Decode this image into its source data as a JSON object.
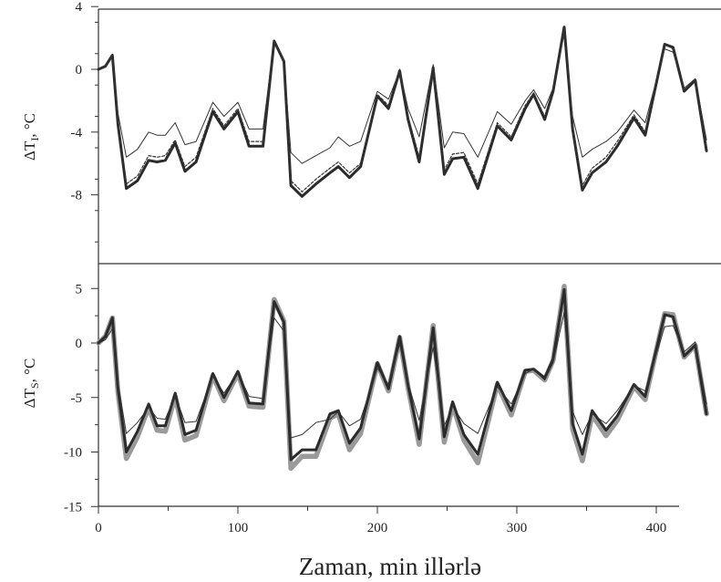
{
  "chart_data": [
    {
      "type": "line",
      "ylabel": "ΔT",
      "ylabel_sub": "I",
      "ylabel_unit": ", °C",
      "xlabel": "Zaman, min illərlə",
      "xlim": [
        0,
        440
      ],
      "ylim": [
        -11,
        4
      ],
      "yticks": [
        4,
        0,
        -4,
        -8
      ],
      "xticks": [
        0,
        100,
        200,
        300,
        400
      ],
      "grid": false,
      "series": [
        {
          "style": "thick",
          "x": [
            0,
            5,
            10,
            14,
            20,
            28,
            36,
            42,
            48,
            55,
            62,
            70,
            82,
            90,
            100,
            108,
            118,
            126,
            133,
            138,
            146,
            156,
            166,
            172,
            180,
            188,
            200,
            208,
            216,
            222,
            230,
            240,
            248,
            254,
            262,
            272,
            286,
            296,
            306,
            312,
            320,
            326,
            334,
            340,
            347,
            354,
            364,
            372,
            384,
            392,
            406,
            412,
            420,
            428,
            436
          ],
          "y": [
            0,
            0.2,
            0.9,
            -3.5,
            -7.6,
            -7.1,
            -5.8,
            -5.9,
            -5.8,
            -4.7,
            -6.5,
            -5.9,
            -2.7,
            -3.8,
            -2.7,
            -4.9,
            -4.9,
            1.8,
            0.5,
            -7.4,
            -8.1,
            -7.3,
            -6.6,
            -6.2,
            -6.9,
            -6.2,
            -1.7,
            -2.5,
            -0.1,
            -3.2,
            -5.9,
            0.1,
            -6.7,
            -5.7,
            -5.6,
            -7.6,
            -3.6,
            -4.5,
            -2.5,
            -1.6,
            -3.2,
            -1.4,
            2.7,
            -3.8,
            -7.7,
            -6.6,
            -5.9,
            -4.9,
            -3.1,
            -4.2,
            1.6,
            1.4,
            -1.4,
            -0.7,
            -5.2
          ]
        },
        {
          "style": "dashed",
          "x": [
            0,
            5,
            10,
            14,
            20,
            28,
            36,
            42,
            48,
            55,
            62,
            70,
            82,
            90,
            100,
            108,
            118,
            126,
            133,
            138,
            146,
            156,
            166,
            172,
            180,
            188,
            200,
            208,
            216,
            222,
            230,
            240,
            248,
            254,
            262,
            272,
            286,
            296,
            306,
            312,
            320,
            326,
            334,
            340,
            347,
            354,
            364,
            372,
            384,
            392,
            406,
            412,
            420,
            428,
            436
          ],
          "y": [
            0,
            0.2,
            0.9,
            -3.4,
            -7.3,
            -6.8,
            -5.5,
            -5.6,
            -5.5,
            -4.5,
            -6.2,
            -5.6,
            -2.5,
            -3.6,
            -2.5,
            -4.6,
            -4.6,
            1.8,
            0.5,
            -7.1,
            -7.8,
            -7.0,
            -6.3,
            -5.9,
            -6.6,
            -6.0,
            -1.6,
            -2.3,
            0,
            -3.0,
            -5.6,
            0.2,
            -6.4,
            -5.4,
            -5.3,
            -7.3,
            -3.4,
            -4.3,
            -2.3,
            -1.5,
            -3.0,
            -1.3,
            2.6,
            -3.6,
            -7.4,
            -6.3,
            -5.6,
            -4.6,
            -2.9,
            -4.0,
            1.6,
            1.3,
            -1.3,
            -0.7,
            -5.0
          ]
        },
        {
          "style": "thin",
          "x": [
            0,
            5,
            10,
            14,
            20,
            28,
            36,
            42,
            48,
            55,
            62,
            70,
            82,
            90,
            100,
            108,
            118,
            126,
            133,
            138,
            146,
            156,
            166,
            172,
            180,
            188,
            200,
            208,
            216,
            222,
            230,
            240,
            248,
            254,
            262,
            272,
            286,
            296,
            306,
            312,
            320,
            326,
            334,
            340,
            347,
            354,
            364,
            372,
            384,
            392,
            406,
            412,
            420,
            428,
            436
          ],
          "y": [
            0,
            0.2,
            0.9,
            -2.8,
            -5.6,
            -5.1,
            -4.0,
            -4.2,
            -4.2,
            -3.4,
            -4.8,
            -4.6,
            -2.1,
            -3.0,
            -2.1,
            -3.8,
            -3.8,
            1.8,
            0.5,
            -5.3,
            -6.0,
            -5.5,
            -5.0,
            -4.3,
            -4.9,
            -4.6,
            -1.4,
            -1.9,
            -0.1,
            -2.5,
            -4.3,
            0.3,
            -5.0,
            -4.0,
            -4.1,
            -5.6,
            -2.7,
            -3.5,
            -2.0,
            -1.3,
            -2.5,
            -1.2,
            2.3,
            -3.0,
            -5.6,
            -5.1,
            -4.6,
            -4.0,
            -2.6,
            -3.4,
            1.3,
            1.1,
            -1.2,
            -0.6,
            -4.5
          ]
        }
      ]
    },
    {
      "type": "line",
      "ylabel": "ΔT",
      "ylabel_sub": "S",
      "ylabel_unit": ", °C",
      "xlabel": "Zaman, min illərlə",
      "xlim": [
        0,
        440
      ],
      "ylim": [
        -15,
        7
      ],
      "yticks": [
        5,
        0,
        -5,
        -10,
        -15
      ],
      "xticks": [
        0,
        100,
        200,
        300,
        400
      ],
      "grid": false,
      "series": [
        {
          "style": "gray-band",
          "x": [
            0,
            5,
            10,
            14,
            20,
            28,
            36,
            42,
            48,
            55,
            62,
            70,
            82,
            90,
            100,
            108,
            118,
            126,
            133,
            138,
            146,
            156,
            166,
            172,
            180,
            188,
            200,
            208,
            216,
            222,
            230,
            240,
            248,
            254,
            262,
            272,
            286,
            296,
            306,
            312,
            320,
            326,
            334,
            340,
            347,
            354,
            364,
            372,
            384,
            392,
            406,
            412,
            420,
            428,
            436
          ],
          "y": [
            0,
            0.6,
            2.3,
            -4.5,
            -10.6,
            -8.6,
            -5.9,
            -8.0,
            -8.1,
            -4.9,
            -8.9,
            -8.5,
            -3.0,
            -5.3,
            -2.8,
            -5.8,
            -5.9,
            4.0,
            2.0,
            -11.5,
            -10.4,
            -10.4,
            -6.9,
            -6.5,
            -9.8,
            -8.3,
            -1.9,
            -4.4,
            0.5,
            -4.1,
            -9.3,
            1.6,
            -9.1,
            -5.7,
            -8.9,
            -11.0,
            -3.8,
            -6.6,
            -2.6,
            -2.5,
            -3.4,
            -1.6,
            5.2,
            -7.9,
            -10.8,
            -6.6,
            -8.5,
            -7.1,
            -4.0,
            -5.2,
            2.7,
            2.6,
            -1.3,
            -0.2,
            -6.5
          ]
        },
        {
          "style": "thick",
          "x": [
            0,
            5,
            10,
            14,
            20,
            28,
            36,
            42,
            48,
            55,
            62,
            70,
            82,
            90,
            100,
            108,
            118,
            126,
            133,
            138,
            146,
            156,
            166,
            172,
            180,
            188,
            200,
            208,
            216,
            222,
            230,
            240,
            248,
            254,
            262,
            272,
            286,
            296,
            306,
            312,
            320,
            326,
            334,
            340,
            347,
            354,
            364,
            372,
            384,
            392,
            406,
            412,
            420,
            428,
            436
          ],
          "y": [
            0,
            0.6,
            2.3,
            -4.2,
            -10.0,
            -8.1,
            -5.6,
            -7.6,
            -7.6,
            -4.6,
            -8.4,
            -8.0,
            -2.8,
            -5.0,
            -2.6,
            -5.5,
            -5.6,
            3.8,
            1.9,
            -10.7,
            -9.8,
            -9.8,
            -6.5,
            -6.2,
            -9.2,
            -7.8,
            -1.8,
            -4.2,
            0.6,
            -3.9,
            -8.8,
            1.4,
            -8.6,
            -5.4,
            -8.4,
            -10.2,
            -3.6,
            -6.2,
            -2.5,
            -2.4,
            -3.2,
            -1.5,
            4.9,
            -7.4,
            -10.2,
            -6.2,
            -8.0,
            -6.7,
            -3.8,
            -4.9,
            2.6,
            2.4,
            -1.2,
            -0.2,
            -6.5
          ]
        },
        {
          "style": "thin",
          "x": [
            0,
            5,
            10,
            14,
            20,
            28,
            36,
            42,
            48,
            55,
            62,
            70,
            82,
            90,
            100,
            108,
            118,
            126,
            133,
            138,
            146,
            156,
            166,
            172,
            180,
            188,
            200,
            208,
            216,
            222,
            230,
            240,
            248,
            254,
            262,
            272,
            286,
            296,
            306,
            312,
            320,
            326,
            334,
            340,
            347,
            354,
            364,
            372,
            384,
            392,
            406,
            412,
            420,
            428,
            436
          ],
          "y": [
            0,
            0.3,
            1.3,
            -3.6,
            -8.3,
            -7.3,
            -5.9,
            -6.9,
            -7.0,
            -4.8,
            -7.3,
            -7.2,
            -3.0,
            -4.6,
            -2.7,
            -4.9,
            -5.1,
            2.3,
            1.1,
            -8.7,
            -8.4,
            -7.3,
            -7.0,
            -6.3,
            -7.6,
            -7.0,
            -2.3,
            -3.8,
            -0.1,
            -3.7,
            -7.1,
            -0.4,
            -7.6,
            -5.8,
            -7.4,
            -8.3,
            -4.0,
            -5.6,
            -2.8,
            -2.4,
            -3.4,
            -1.8,
            2.8,
            -6.3,
            -8.4,
            -6.5,
            -7.4,
            -6.2,
            -3.9,
            -4.4,
            1.5,
            1.6,
            -0.8,
            0.1,
            -5.6
          ]
        }
      ]
    }
  ]
}
